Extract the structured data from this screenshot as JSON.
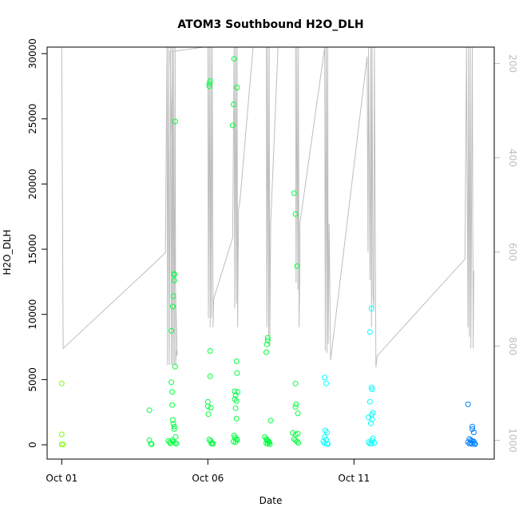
{
  "chart_data": {
    "type": "scatter",
    "title": "ATOM3 Southbound H2O_DLH",
    "xlabel": "Date",
    "ylabel": "H2O_DLH",
    "x_ticks": [
      {
        "day": 1,
        "label": "Oct 01"
      },
      {
        "day": 6,
        "label": "Oct 06"
      },
      {
        "day": 11,
        "label": "Oct 11"
      }
    ],
    "xlim": [
      0.5,
      15.8
    ],
    "ylim": [
      -1100,
      30500
    ],
    "y_ticks": [
      0,
      5000,
      10000,
      15000,
      20000,
      25000,
      30000
    ],
    "y_tick_labels": [
      "0",
      "5000",
      "10000",
      "15000",
      "20000",
      "25000",
      "30000"
    ],
    "right_axis": {
      "label": "",
      "ticks": [
        200,
        400,
        600,
        800,
        1000
      ],
      "tick_labels": [
        "200",
        "400",
        "600",
        "800",
        "1000"
      ],
      "lim": [
        1040,
        165
      ],
      "reversed": true,
      "color": "#bebebe"
    },
    "points": [
      [
        1.0,
        4700
      ],
      [
        1.0,
        800
      ],
      [
        1.0,
        30
      ],
      [
        1.05,
        20
      ],
      [
        4.0,
        2650
      ],
      [
        4.0,
        350
      ],
      [
        4.05,
        80
      ],
      [
        4.08,
        40
      ],
      [
        4.75,
        8750
      ],
      [
        4.75,
        4800
      ],
      [
        4.78,
        4050
      ],
      [
        4.78,
        3050
      ],
      [
        4.8,
        10600
      ],
      [
        4.8,
        1900
      ],
      [
        4.82,
        11400
      ],
      [
        4.82,
        1600
      ],
      [
        4.85,
        13100
      ],
      [
        4.85,
        13050
      ],
      [
        4.85,
        12600
      ],
      [
        4.85,
        1400
      ],
      [
        4.85,
        1200
      ],
      [
        4.88,
        24800
      ],
      [
        4.88,
        6000
      ],
      [
        4.9,
        600
      ],
      [
        4.65,
        300
      ],
      [
        4.7,
        200
      ],
      [
        4.72,
        100
      ],
      [
        4.78,
        350
      ],
      [
        4.82,
        250
      ],
      [
        4.88,
        150
      ],
      [
        4.92,
        80
      ],
      [
        6.0,
        3300
      ],
      [
        6.0,
        2950
      ],
      [
        6.02,
        2350
      ],
      [
        6.05,
        27700
      ],
      [
        6.05,
        27500
      ],
      [
        6.08,
        27900
      ],
      [
        6.08,
        7200
      ],
      [
        6.08,
        5250
      ],
      [
        6.1,
        2850
      ],
      [
        6.05,
        400
      ],
      [
        6.1,
        300
      ],
      [
        6.12,
        100
      ],
      [
        6.15,
        150
      ],
      [
        6.18,
        80
      ],
      [
        6.85,
        24500
      ],
      [
        6.88,
        26100
      ],
      [
        6.9,
        29600
      ],
      [
        6.92,
        4100
      ],
      [
        6.92,
        3500
      ],
      [
        6.95,
        3800
      ],
      [
        6.95,
        2800
      ],
      [
        6.98,
        6400
      ],
      [
        6.98,
        3350
      ],
      [
        6.98,
        2000
      ],
      [
        7.0,
        27400
      ],
      [
        7.0,
        5500
      ],
      [
        7.02,
        4050
      ],
      [
        6.9,
        700
      ],
      [
        6.93,
        550
      ],
      [
        6.98,
        450
      ],
      [
        7.0,
        350
      ],
      [
        6.88,
        250
      ],
      [
        6.95,
        200
      ],
      [
        8.0,
        7100
      ],
      [
        8.02,
        7700
      ],
      [
        8.05,
        8000
      ],
      [
        8.05,
        8200
      ],
      [
        8.15,
        1850
      ],
      [
        7.95,
        600
      ],
      [
        8.0,
        450
      ],
      [
        8.02,
        350
      ],
      [
        8.05,
        300
      ],
      [
        8.08,
        250
      ],
      [
        8.1,
        200
      ],
      [
        8.0,
        120
      ],
      [
        8.05,
        80
      ],
      [
        8.12,
        60
      ],
      [
        8.95,
        19300
      ],
      [
        9.0,
        17700
      ],
      [
        9.05,
        13700
      ],
      [
        9.0,
        4700
      ],
      [
        9.0,
        2900
      ],
      [
        9.02,
        3100
      ],
      [
        9.08,
        2400
      ],
      [
        8.9,
        900
      ],
      [
        9.0,
        800
      ],
      [
        9.08,
        850
      ],
      [
        8.95,
        450
      ],
      [
        9.0,
        350
      ],
      [
        9.05,
        250
      ],
      [
        9.1,
        150
      ],
      [
        10.0,
        5150
      ],
      [
        10.05,
        4700
      ],
      [
        10.02,
        1100
      ],
      [
        10.08,
        950
      ],
      [
        10.0,
        600
      ],
      [
        10.05,
        400
      ],
      [
        9.95,
        250
      ],
      [
        10.0,
        120
      ],
      [
        10.08,
        80
      ],
      [
        10.1,
        50
      ],
      [
        11.6,
        10450
      ],
      [
        11.55,
        8650
      ],
      [
        11.6,
        4400
      ],
      [
        11.62,
        4250
      ],
      [
        11.55,
        3300
      ],
      [
        11.6,
        2300
      ],
      [
        11.65,
        2450
      ],
      [
        11.5,
        2100
      ],
      [
        11.58,
        1650
      ],
      [
        11.62,
        1950
      ],
      [
        11.65,
        500
      ],
      [
        11.62,
        300
      ],
      [
        11.5,
        200
      ],
      [
        11.55,
        100
      ],
      [
        11.6,
        80
      ],
      [
        11.7,
        150
      ],
      [
        14.9,
        3100
      ],
      [
        15.05,
        1400
      ],
      [
        15.05,
        1200
      ],
      [
        15.1,
        950
      ],
      [
        14.95,
        450
      ],
      [
        15.0,
        350
      ],
      [
        15.05,
        300
      ],
      [
        15.1,
        250
      ],
      [
        14.9,
        200
      ],
      [
        15.0,
        150
      ],
      [
        15.12,
        100
      ],
      [
        14.95,
        80
      ],
      [
        15.05,
        60
      ],
      [
        15.15,
        50
      ]
    ],
    "line_series": {
      "name": "",
      "color": "#bebebe",
      "points": [
        [
          1.0,
          165
        ],
        [
          1.0,
          165
        ],
        [
          1.0,
          165
        ],
        [
          1.05,
          805
        ],
        [
          4.5,
          605
        ],
        [
          4.55,
          600
        ],
        [
          4.6,
          165
        ],
        [
          4.62,
          840
        ],
        [
          4.65,
          165
        ],
        [
          4.68,
          840
        ],
        [
          4.72,
          165
        ],
        [
          4.75,
          840
        ],
        [
          4.78,
          165
        ],
        [
          4.8,
          840
        ],
        [
          4.82,
          165
        ],
        [
          4.85,
          840
        ],
        [
          4.88,
          165
        ],
        [
          4.9,
          840
        ],
        [
          4.92,
          810
        ],
        [
          4.95,
          820
        ],
        [
          4.7,
          175
        ],
        [
          5.85,
          165
        ],
        [
          6.0,
          165
        ],
        [
          6.02,
          740
        ],
        [
          6.05,
          165
        ],
        [
          6.08,
          760
        ],
        [
          6.1,
          165
        ],
        [
          6.12,
          740
        ],
        [
          6.15,
          165
        ],
        [
          6.18,
          760
        ],
        [
          6.2,
          700
        ],
        [
          6.85,
          570
        ],
        [
          6.9,
          165
        ],
        [
          6.92,
          720
        ],
        [
          6.95,
          165
        ],
        [
          6.98,
          710
        ],
        [
          7.0,
          165
        ],
        [
          7.02,
          760
        ],
        [
          7.05,
          510
        ],
        [
          7.1,
          490
        ],
        [
          7.55,
          165
        ],
        [
          7.6,
          165
        ],
        [
          8.0,
          165
        ],
        [
          8.02,
          760
        ],
        [
          8.05,
          165
        ],
        [
          8.08,
          780
        ],
        [
          8.1,
          165
        ],
        [
          8.12,
          800
        ],
        [
          8.15,
          540
        ],
        [
          8.4,
          165
        ],
        [
          8.6,
          165
        ],
        [
          8.85,
          165
        ],
        [
          9.0,
          165
        ],
        [
          9.02,
          665
        ],
        [
          9.05,
          165
        ],
        [
          9.08,
          680
        ],
        [
          9.1,
          165
        ],
        [
          9.12,
          760
        ],
        [
          9.15,
          640
        ],
        [
          9.15,
          540
        ],
        [
          10.0,
          165
        ],
        [
          10.02,
          810
        ],
        [
          10.05,
          165
        ],
        [
          10.08,
          815
        ],
        [
          10.1,
          165
        ],
        [
          10.12,
          795
        ],
        [
          10.15,
          540
        ],
        [
          10.2,
          830
        ],
        [
          11.45,
          185
        ],
        [
          11.48,
          600
        ],
        [
          11.5,
          165
        ],
        [
          11.55,
          660
        ],
        [
          11.58,
          165
        ],
        [
          11.6,
          760
        ],
        [
          11.62,
          165
        ],
        [
          11.65,
          690
        ],
        [
          11.68,
          720
        ],
        [
          11.7,
          165
        ],
        [
          11.75,
          845
        ],
        [
          11.8,
          820
        ],
        [
          14.8,
          615
        ],
        [
          14.85,
          165
        ],
        [
          14.9,
          760
        ],
        [
          14.92,
          165
        ],
        [
          14.95,
          780
        ],
        [
          14.98,
          165
        ],
        [
          15.0,
          805
        ],
        [
          15.05,
          165
        ],
        [
          15.08,
          805
        ],
        [
          15.1,
          640
        ]
      ]
    },
    "point_colors": {
      "early": "#7fff00",
      "mid": "#00ff40",
      "late": "#00ffff",
      "end": "#0080ff"
    },
    "grid": false,
    "legend": "none"
  }
}
